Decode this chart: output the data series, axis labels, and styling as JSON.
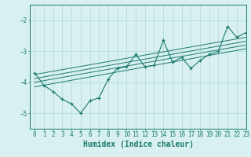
{
  "x_jagged": [
    0,
    1,
    2,
    3,
    4,
    5,
    6,
    7,
    8,
    9,
    10,
    11,
    12,
    13,
    14,
    15,
    16,
    17,
    18,
    19,
    20,
    21,
    22,
    23
  ],
  "y_jagged": [
    -3.7,
    -4.1,
    -4.3,
    -4.55,
    -4.7,
    -5.0,
    -4.6,
    -4.5,
    -3.9,
    -3.55,
    -3.5,
    -3.1,
    -3.5,
    -3.45,
    -2.65,
    -3.35,
    -3.2,
    -3.55,
    -3.3,
    -3.1,
    -3.0,
    -2.2,
    -2.55,
    -2.4
  ],
  "trend_lines": [
    {
      "x": [
        0,
        23
      ],
      "y": [
        -3.75,
        -2.55
      ]
    },
    {
      "x": [
        0,
        23
      ],
      "y": [
        -3.88,
        -2.68
      ]
    },
    {
      "x": [
        0,
        23
      ],
      "y": [
        -4.0,
        -2.8
      ]
    },
    {
      "x": [
        0,
        23
      ],
      "y": [
        -4.15,
        -2.92
      ]
    }
  ],
  "color": "#1a7a6e",
  "bg_color": "#d8f0f0",
  "grid_color": "#b0d8d8",
  "xlabel": "Humidex (Indice chaleur)",
  "xlabel_fontsize": 7,
  "tick_fontsize": 5.5,
  "ylim": [
    -5.5,
    -1.5
  ],
  "xlim": [
    -0.5,
    23
  ],
  "yticks": [
    -5,
    -4,
    -3,
    -2
  ],
  "xticks": [
    0,
    1,
    2,
    3,
    4,
    5,
    6,
    7,
    8,
    9,
    10,
    11,
    12,
    13,
    14,
    15,
    16,
    17,
    18,
    19,
    20,
    21,
    22,
    23
  ]
}
